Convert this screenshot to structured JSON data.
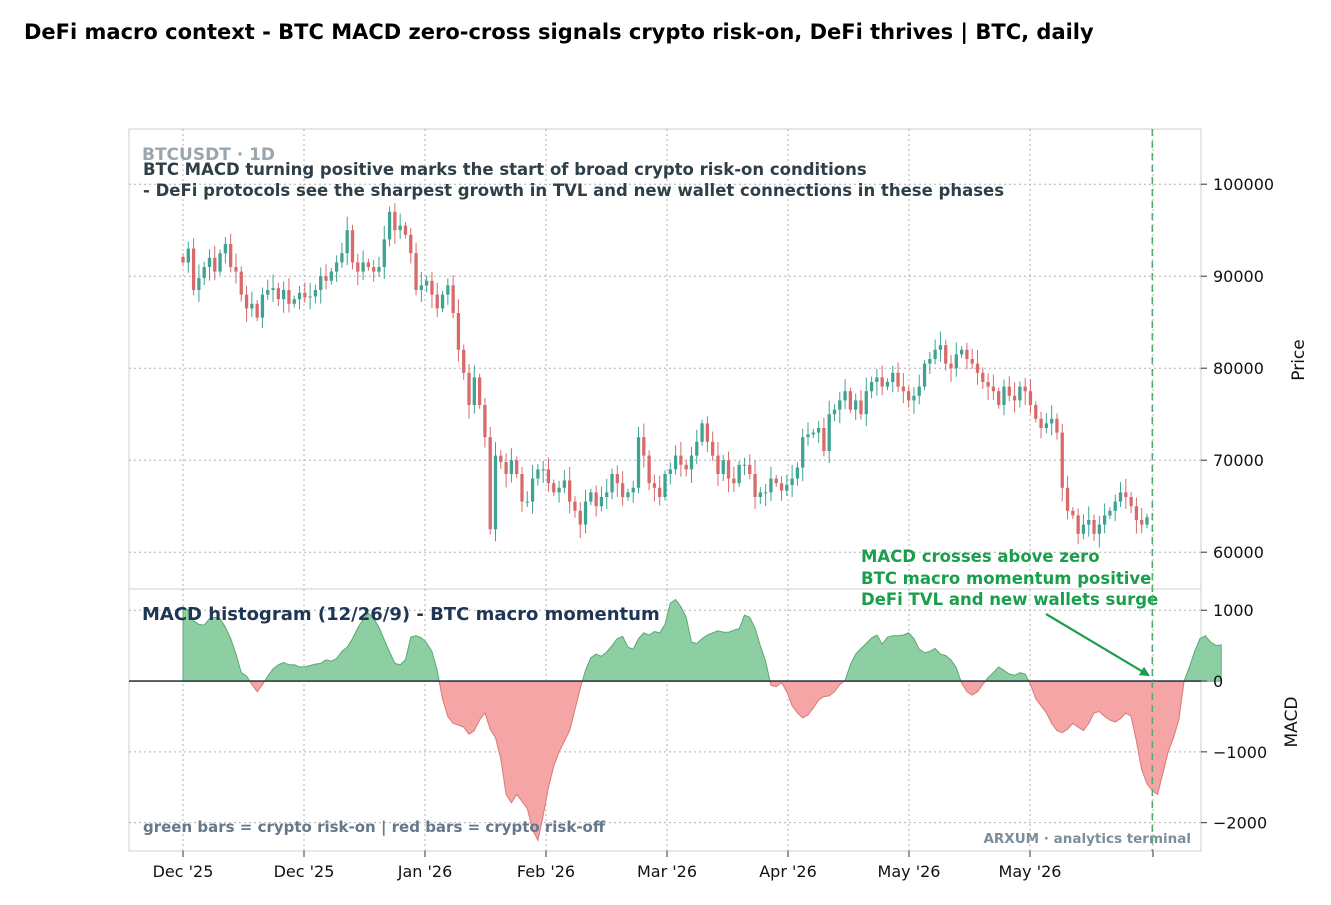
{
  "header": {
    "title": "DeFi macro context - BTC MACD zero-cross signals crypto risk-on, DeFi thrives  |  BTC, daily"
  },
  "colors": {
    "up": "#3fa392",
    "down": "#d86a6a",
    "hist_pos": "#8dcfa2",
    "hist_neg": "#f5a5a5",
    "signal": "#1a9e4b",
    "title_dark": "#1f3554",
    "note_text": "#2f3f48",
    "muted": "#64788a"
  },
  "chart_data": [
    {
      "type": "candlestick",
      "symbol_label": "BTCUSDT · 1D",
      "annotation": [
        "BTC MACD turning positive marks the start of broad crypto risk-on conditions",
        "- DeFi protocols see the sharpest growth in TVL and new wallet connections in these phases"
      ],
      "ylabel": "Price",
      "ylim": [
        56000,
        106000
      ],
      "yticks": [
        60000,
        70000,
        80000,
        90000,
        100000
      ],
      "ytick_labels": [
        "60000",
        "70000",
        "80000",
        "90000",
        "100000"
      ],
      "x_tick_labels": [
        "Dec '25",
        "Dec '25",
        "Jan '26",
        "Feb '26",
        "Mar '26",
        "Apr '26",
        "May '26",
        "May '26"
      ],
      "grid": true,
      "closes": [
        91500,
        93000,
        88500,
        89800,
        91000,
        92000,
        90500,
        92500,
        93500,
        91000,
        90500,
        88000,
        86500,
        87000,
        85500,
        88000,
        88500,
        88700,
        87500,
        88500,
        87000,
        87500,
        88200,
        87700,
        87800,
        88500,
        90000,
        89500,
        90500,
        91500,
        92500,
        95000,
        91500,
        90500,
        91500,
        91000,
        90500,
        91000,
        94000,
        97000,
        95000,
        95500,
        94500,
        92500,
        88500,
        89000,
        89500,
        88000,
        86500,
        88000,
        89000,
        86000,
        82000,
        79500,
        76000,
        79000,
        76000,
        72500,
        62500,
        70500,
        69800,
        68500,
        70000,
        68500,
        65500,
        65500,
        68000,
        69000,
        69000,
        67500,
        66500,
        67000,
        67800,
        65500,
        64500,
        63000,
        65500,
        66500,
        65000,
        66000,
        66500,
        68500,
        67500,
        66000,
        66500,
        67000,
        72500,
        70500,
        67500,
        67000,
        66000,
        68500,
        69000,
        70500,
        69500,
        69000,
        70500,
        72000,
        74000,
        72000,
        70500,
        68500,
        70000,
        68000,
        67500,
        69500,
        69500,
        68500,
        66000,
        66500,
        66500,
        68000,
        67500,
        66700,
        67300,
        68000,
        69200,
        72500,
        72800,
        73000,
        73500,
        71000,
        75000,
        75500,
        76500,
        77500,
        75500,
        76500,
        75000,
        77500,
        78500,
        79000,
        78000,
        78500,
        79500,
        78000,
        77500,
        76500,
        77000,
        78000,
        80500,
        81000,
        82000,
        82500,
        80500,
        80000,
        81500,
        82000,
        81000,
        80500,
        79500,
        78500,
        78000,
        77500,
        76000,
        78000,
        77000,
        76500,
        78000,
        77500,
        76000,
        74500,
        73500,
        74000,
        74500,
        73000,
        67000,
        64500,
        64000,
        62000,
        63000,
        63500,
        62000,
        63000,
        64000,
        64500,
        65500,
        66500,
        66000,
        65000,
        63500,
        63000,
        63800
      ],
      "range_high": 98000,
      "range_low": 59500
    },
    {
      "type": "area",
      "title": "MACD histogram (12/26/9) - BTC macro momentum",
      "ylabel": "MACD",
      "ylim": [
        -2400,
        1300
      ],
      "yticks": [
        -2000,
        -1000,
        0,
        1000
      ],
      "ytick_labels": [
        "−2000",
        "−1000",
        "0",
        "1000"
      ],
      "grid": true,
      "legend_note": "green bars = crypto risk-on  |  red bars = crypto risk-off",
      "watermark": "ARXUM · analytics terminal",
      "signal": {
        "lines": [
          "MACD crosses above zero",
          "BTC macro momentum positive",
          "DeFi TVL and new wallets surge"
        ],
        "cross_index": 183
      },
      "values": [
        1050,
        1000,
        850,
        800,
        790,
        880,
        900,
        880,
        760,
        600,
        380,
        120,
        70,
        -50,
        -150,
        -50,
        70,
        170,
        230,
        260,
        230,
        230,
        200,
        200,
        220,
        240,
        250,
        300,
        280,
        320,
        420,
        480,
        600,
        750,
        870,
        960,
        880,
        760,
        580,
        410,
        250,
        230,
        300,
        620,
        640,
        610,
        540,
        420,
        150,
        -250,
        -500,
        -600,
        -620,
        -650,
        -750,
        -700,
        -550,
        -450,
        -680,
        -800,
        -1100,
        -1600,
        -1720,
        -1600,
        -1700,
        -1800,
        -2100,
        -2250,
        -1900,
        -1500,
        -1200,
        -1000,
        -850,
        -700,
        -400,
        -100,
        150,
        330,
        380,
        350,
        410,
        500,
        600,
        630,
        480,
        450,
        600,
        680,
        650,
        700,
        680,
        800,
        1100,
        1150,
        1050,
        900,
        550,
        530,
        600,
        650,
        680,
        710,
        690,
        690,
        720,
        740,
        930,
        900,
        750,
        500,
        280,
        -60,
        -80,
        -20,
        -150,
        -350,
        -450,
        -520,
        -480,
        -380,
        -270,
        -220,
        -210,
        -150,
        -50,
        10,
        230,
        380,
        460,
        530,
        610,
        650,
        520,
        620,
        640,
        640,
        650,
        680,
        600,
        450,
        400,
        420,
        460,
        380,
        360,
        300,
        190,
        -30,
        -150,
        -200,
        -150,
        -50,
        50,
        120,
        200,
        150,
        100,
        80,
        120,
        100,
        -50,
        -250,
        -350,
        -450,
        -600,
        -700,
        -730,
        -680,
        -600,
        -650,
        -700,
        -600,
        -450,
        -430,
        -500,
        -550,
        -580,
        -530,
        -450,
        -500,
        -850,
        -1250,
        -1450,
        -1550,
        -1600,
        -1300,
        -1000,
        -800,
        -550,
        0,
        200,
        420,
        600,
        640,
        550,
        500,
        510
      ]
    }
  ]
}
